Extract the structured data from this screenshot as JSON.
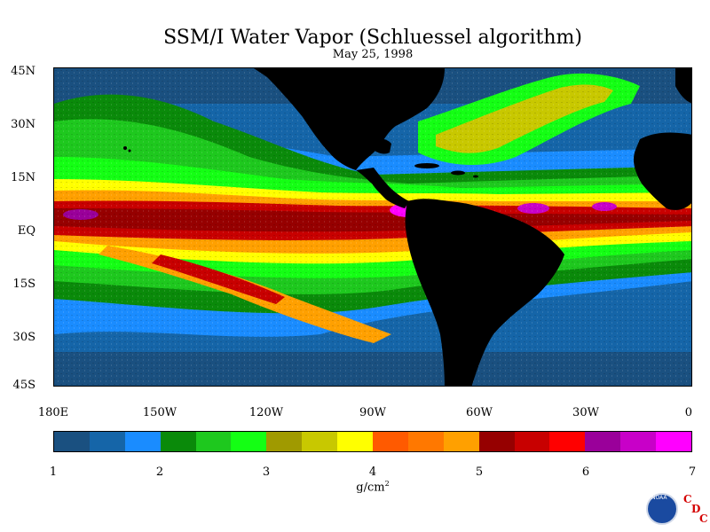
{
  "title": "SSM/I Water Vapor (Schluessel algorithm)",
  "date": "May 25, 1998",
  "lat_labels": [
    "45N",
    "30N",
    "15N",
    "EQ",
    "15S",
    "30S",
    "45S"
  ],
  "lon_labels": [
    "180E",
    "150W",
    "120W",
    "90W",
    "60W",
    "30W",
    "0"
  ],
  "colorbar": {
    "colors": [
      "#1a5080",
      "#1565a8",
      "#1a8cff",
      "#0a8a0a",
      "#1ec81e",
      "#14ff14",
      "#a09a00",
      "#c8c800",
      "#ffff00",
      "#ff5a00",
      "#ff7800",
      "#ffa000",
      "#960000",
      "#c80000",
      "#ff0000",
      "#9a009a",
      "#c800c8",
      "#ff00ff"
    ],
    "tick_labels": [
      "1",
      "2",
      "3",
      "4",
      "5",
      "6",
      "7"
    ],
    "unit": "g/cm",
    "unit_sup": "2"
  },
  "logo": {
    "text": "NOAA",
    "letters": [
      "C",
      "D",
      "C"
    ]
  }
}
